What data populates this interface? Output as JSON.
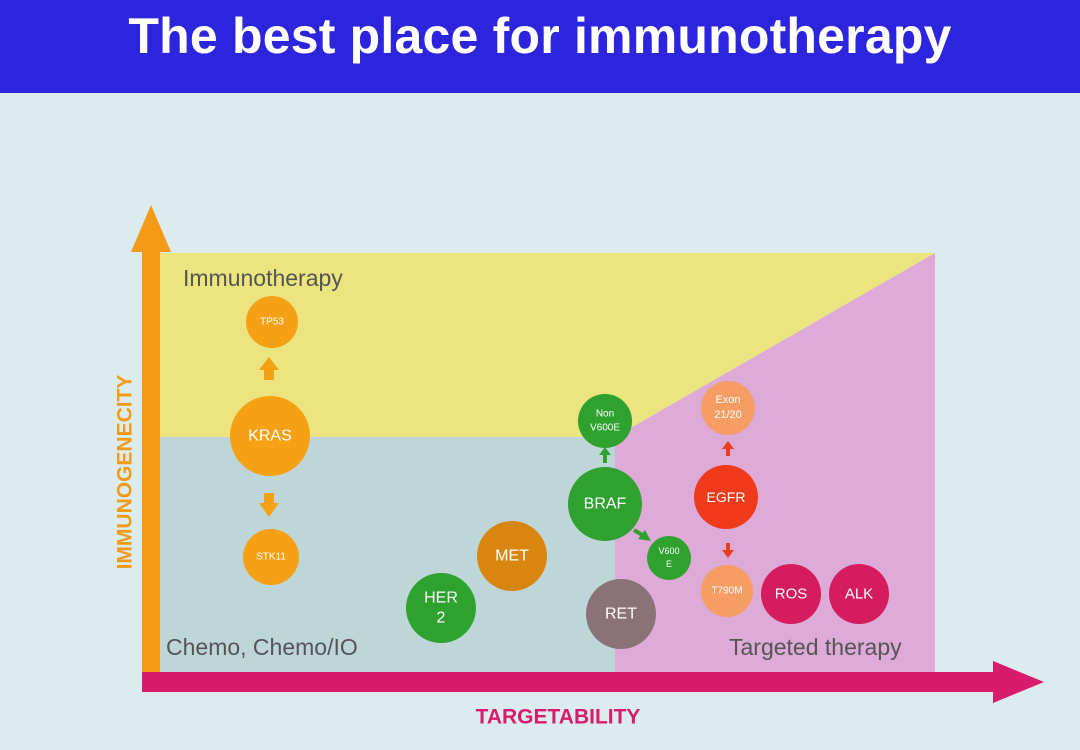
{
  "title": "The best place for immunotherapy",
  "zones": {
    "immunotherapy": "Immunotherapy",
    "chemo": "Chemo, Chemo/IO",
    "targeted": "Targeted therapy"
  },
  "axes": {
    "y_label": "IMMUNOGENECITY",
    "x_label": "TARGETABILITY"
  },
  "colors": {
    "title_bar": "#2d25de",
    "zone_immunotherapy": "#ece57f",
    "zone_chemo": "#bfd6d8",
    "zone_targeted": "#deaad8",
    "y_axis": "#f39a17",
    "x_axis": "#d81b6a",
    "orange_node": "#f5a015",
    "green_node": "#2fa12f",
    "met_node": "#d8860f",
    "ret_node": "#8b7276",
    "egfr_node": "#ef3b1c",
    "egfr_sub_node": "#f59d62",
    "ros_alk_node": "#d41c5f"
  },
  "nodes": {
    "tp53": "TP53",
    "kras": "KRAS",
    "stk11": "STK11",
    "her2_line1": "HER",
    "her2_line2": "2",
    "met": "MET",
    "non_v600e_line1": "Non",
    "non_v600e_line2": "V600E",
    "braf": "BRAF",
    "v600e_line1": "V600",
    "v600e_line2": "E",
    "ret": "RET",
    "exon_line1": "Exon",
    "exon_line2": "21/20",
    "egfr": "EGFR",
    "t790m": "T790M",
    "ros": "ROS",
    "alk": "ALK"
  }
}
